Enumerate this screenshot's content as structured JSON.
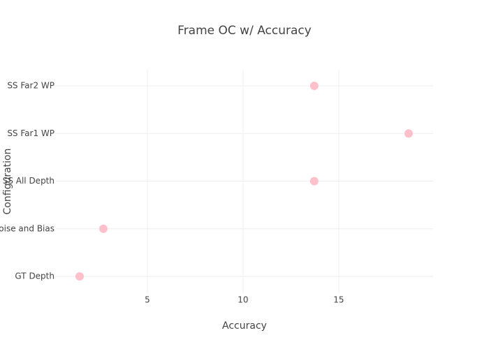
{
  "chart_data": {
    "type": "scatter",
    "title": "Frame OC w/ Accuracy",
    "x_label": "Accuracy",
    "y_label": "Configuration",
    "categories": [
      "GT Depth",
      "Noise and Bias",
      "SS All Depth",
      "SS Far1 WP",
      "SS Far2 WP"
    ],
    "values": [
      1.46,
      2.7,
      13.72,
      18.65,
      13.72
    ],
    "color": "#ffc0cb",
    "xlim": [
      0.22,
      19.93
    ],
    "xticks": [
      5,
      10,
      15
    ],
    "grid": true
  }
}
